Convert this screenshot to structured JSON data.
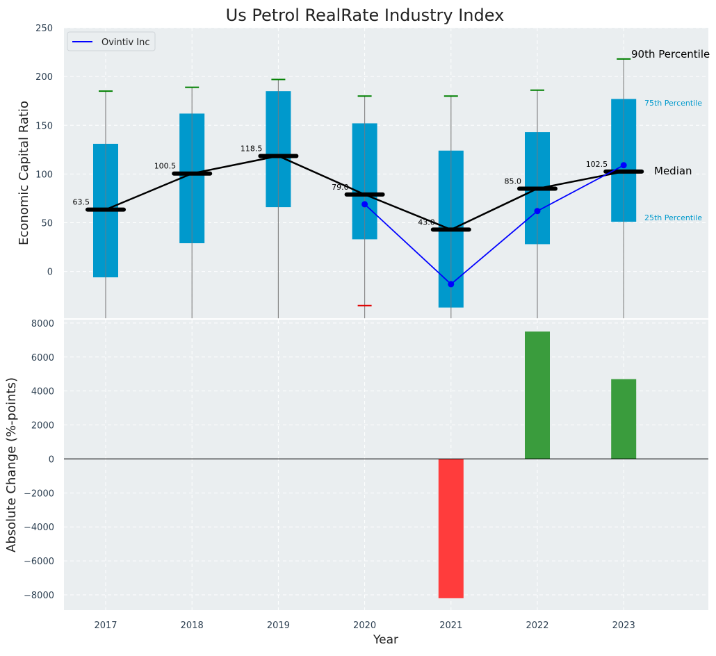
{
  "chart_data": [
    {
      "type": "box",
      "title": "Us Petrol RealRate Industry Index",
      "ylabel": "Economic Capital Ratio",
      "ylim": [
        -48,
        250
      ],
      "yticks": [
        0,
        50,
        100,
        150,
        200,
        250
      ],
      "grid": true,
      "categories": [
        "2017",
        "2018",
        "2019",
        "2020",
        "2021",
        "2022",
        "2023"
      ],
      "percentiles": {
        "p25": [
          -6,
          29,
          66,
          33,
          -37,
          28,
          51
        ],
        "p75": [
          131,
          162,
          185,
          152,
          124,
          143,
          177
        ],
        "median": [
          63.5,
          100.5,
          118.5,
          79.0,
          43.0,
          85.0,
          102.5
        ],
        "p90": [
          185,
          189,
          197,
          180,
          180,
          186,
          218
        ],
        "p10_marker": [
          null,
          null,
          null,
          -35,
          null,
          null,
          null
        ]
      },
      "median_labels": [
        "63.5",
        "100.5",
        "118.5",
        "79.0",
        "43.0",
        "85.0",
        "102.5"
      ],
      "series": [
        {
          "name": "Ovintiv Inc",
          "values": [
            null,
            null,
            null,
            69,
            -13,
            62,
            109
          ]
        }
      ],
      "legend": {
        "position": "top-left",
        "entries": [
          "Ovintiv Inc"
        ]
      },
      "annotations": {
        "p90": "90th Percentile",
        "p75": "75th Percentile",
        "median": "Median",
        "p25": "25th Percentile"
      },
      "colors": {
        "box": "#0099cc",
        "median": "#000000",
        "series": "#0000ff",
        "whisker": "#888888",
        "p90_cap": "#008000",
        "p10_cap": "#e00000",
        "background": "#eaeef0"
      }
    },
    {
      "type": "bar",
      "ylabel": "Absolute Change (%-points)",
      "xlabel": "Year",
      "categories": [
        "2017",
        "2018",
        "2019",
        "2020",
        "2021",
        "2022",
        "2023"
      ],
      "values": [
        0,
        0,
        0,
        0,
        -8200,
        7500,
        4700
      ],
      "ylim": [
        -8900,
        8200
      ],
      "yticks": [
        -8000,
        -6000,
        -4000,
        -2000,
        0,
        2000,
        4000,
        6000,
        8000
      ],
      "grid": true,
      "colors": {
        "positive": "#3a9c3d",
        "negative": "#ff3c3c"
      }
    }
  ]
}
